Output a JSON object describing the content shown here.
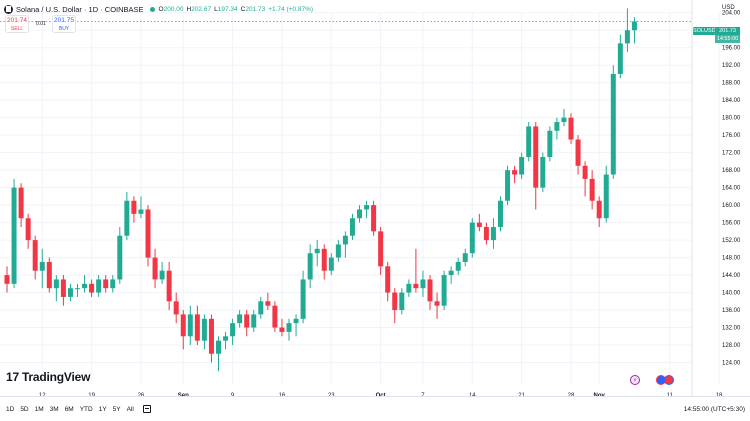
{
  "header": {
    "title": "Solana / U.S. Dollar · 1D · COINBASE",
    "ohlc": {
      "o_label": "O",
      "o": "200.00",
      "h_label": "H",
      "h": "202.67",
      "l_label": "L",
      "l": "197.34",
      "c_label": "C",
      "c": "201.73",
      "change": "+1.74 (+0.87%)"
    },
    "status_color": "#22ab94"
  },
  "trade": {
    "sell_price": "201.74",
    "sell_label": "SELL",
    "buy_price": "201.75",
    "buy_label": "BUY",
    "spread": "0.01"
  },
  "axis": {
    "currency": "USD",
    "symbol_badge": "SOLUSD",
    "last_price": "201.73",
    "countdown": "14:55:00"
  },
  "watermark": "TradingView",
  "toolbar": {
    "ranges": [
      "1D",
      "5D",
      "1M",
      "3M",
      "6M",
      "YTD",
      "1Y",
      "5Y",
      "All"
    ],
    "clock": "14:55:00 (UTC+5:30)"
  },
  "colors": {
    "up": "#22ab94",
    "down": "#f23645",
    "grid": "#f0f3fa"
  },
  "chart_data": {
    "type": "candlestick",
    "ylim": [
      120,
      206
    ],
    "yticks": [
      124,
      128,
      132,
      136,
      140,
      144,
      148,
      152,
      156,
      160,
      164,
      168,
      172,
      176,
      180,
      184,
      188,
      192,
      196,
      200,
      204
    ],
    "xticks": [
      {
        "label": "12",
        "i": 5,
        "bold": false
      },
      {
        "label": "19",
        "i": 12,
        "bold": false
      },
      {
        "label": "26",
        "i": 19,
        "bold": false
      },
      {
        "label": "Sep",
        "i": 25,
        "bold": true
      },
      {
        "label": "9",
        "i": 32,
        "bold": false
      },
      {
        "label": "16",
        "i": 39,
        "bold": false
      },
      {
        "label": "23",
        "i": 46,
        "bold": false
      },
      {
        "label": "Oct",
        "i": 53,
        "bold": true
      },
      {
        "label": "7",
        "i": 59,
        "bold": false
      },
      {
        "label": "14",
        "i": 66,
        "bold": false
      },
      {
        "label": "21",
        "i": 73,
        "bold": false
      },
      {
        "label": "28",
        "i": 80,
        "bold": false
      },
      {
        "label": "Nov",
        "i": 84,
        "bold": true
      },
      {
        "label": "11",
        "i": 94,
        "bold": false
      },
      {
        "label": "18",
        "i": 101,
        "bold": false
      }
    ],
    "candles": [
      {
        "o": 144,
        "h": 146,
        "l": 140,
        "c": 142
      },
      {
        "o": 142,
        "h": 166,
        "l": 141,
        "c": 164
      },
      {
        "o": 164,
        "h": 165,
        "l": 155,
        "c": 157
      },
      {
        "o": 157,
        "h": 158,
        "l": 150,
        "c": 152
      },
      {
        "o": 152,
        "h": 153,
        "l": 143,
        "c": 145
      },
      {
        "o": 145,
        "h": 150,
        "l": 141,
        "c": 147
      },
      {
        "o": 147,
        "h": 148,
        "l": 140,
        "c": 141
      },
      {
        "o": 141,
        "h": 144,
        "l": 138,
        "c": 143
      },
      {
        "o": 143,
        "h": 144,
        "l": 137,
        "c": 139
      },
      {
        "o": 139,
        "h": 142,
        "l": 138,
        "c": 141
      },
      {
        "o": 141,
        "h": 142,
        "l": 139,
        "c": 141
      },
      {
        "o": 141,
        "h": 144,
        "l": 140,
        "c": 142
      },
      {
        "o": 142,
        "h": 143,
        "l": 139,
        "c": 140
      },
      {
        "o": 140,
        "h": 144,
        "l": 139,
        "c": 143
      },
      {
        "o": 143,
        "h": 144,
        "l": 140,
        "c": 141
      },
      {
        "o": 141,
        "h": 144,
        "l": 140,
        "c": 143
      },
      {
        "o": 143,
        "h": 155,
        "l": 142,
        "c": 153
      },
      {
        "o": 153,
        "h": 163,
        "l": 152,
        "c": 161
      },
      {
        "o": 161,
        "h": 162,
        "l": 156,
        "c": 158
      },
      {
        "o": 158,
        "h": 162,
        "l": 157,
        "c": 159
      },
      {
        "o": 159,
        "h": 160,
        "l": 146,
        "c": 148
      },
      {
        "o": 148,
        "h": 150,
        "l": 141,
        "c": 143
      },
      {
        "o": 143,
        "h": 147,
        "l": 142,
        "c": 145
      },
      {
        "o": 145,
        "h": 147,
        "l": 136,
        "c": 138
      },
      {
        "o": 138,
        "h": 140,
        "l": 133,
        "c": 135
      },
      {
        "o": 135,
        "h": 136,
        "l": 127,
        "c": 130
      },
      {
        "o": 130,
        "h": 137,
        "l": 128,
        "c": 135
      },
      {
        "o": 135,
        "h": 137,
        "l": 128,
        "c": 129
      },
      {
        "o": 129,
        "h": 135,
        "l": 127,
        "c": 134
      },
      {
        "o": 134,
        "h": 135,
        "l": 124,
        "c": 126
      },
      {
        "o": 126,
        "h": 130,
        "l": 122,
        "c": 129
      },
      {
        "o": 129,
        "h": 131,
        "l": 127,
        "c": 130
      },
      {
        "o": 130,
        "h": 134,
        "l": 128,
        "c": 133
      },
      {
        "o": 133,
        "h": 136,
        "l": 132,
        "c": 135
      },
      {
        "o": 135,
        "h": 136,
        "l": 130,
        "c": 132
      },
      {
        "o": 132,
        "h": 136,
        "l": 131,
        "c": 135
      },
      {
        "o": 135,
        "h": 139,
        "l": 134,
        "c": 138
      },
      {
        "o": 138,
        "h": 140,
        "l": 136,
        "c": 137
      },
      {
        "o": 137,
        "h": 138,
        "l": 131,
        "c": 132
      },
      {
        "o": 132,
        "h": 134,
        "l": 130,
        "c": 131
      },
      {
        "o": 131,
        "h": 134,
        "l": 129,
        "c": 133
      },
      {
        "o": 133,
        "h": 135,
        "l": 130,
        "c": 134
      },
      {
        "o": 134,
        "h": 145,
        "l": 133,
        "c": 143
      },
      {
        "o": 143,
        "h": 151,
        "l": 141,
        "c": 149
      },
      {
        "o": 149,
        "h": 152,
        "l": 146,
        "c": 150
      },
      {
        "o": 150,
        "h": 151,
        "l": 143,
        "c": 145
      },
      {
        "o": 145,
        "h": 149,
        "l": 144,
        "c": 148
      },
      {
        "o": 148,
        "h": 152,
        "l": 147,
        "c": 151
      },
      {
        "o": 151,
        "h": 154,
        "l": 148,
        "c": 153
      },
      {
        "o": 153,
        "h": 158,
        "l": 152,
        "c": 157
      },
      {
        "o": 157,
        "h": 160,
        "l": 156,
        "c": 159
      },
      {
        "o": 159,
        "h": 161,
        "l": 157,
        "c": 160
      },
      {
        "o": 160,
        "h": 161,
        "l": 153,
        "c": 154
      },
      {
        "o": 154,
        "h": 155,
        "l": 144,
        "c": 146
      },
      {
        "o": 146,
        "h": 147,
        "l": 138,
        "c": 140
      },
      {
        "o": 140,
        "h": 141,
        "l": 133,
        "c": 136
      },
      {
        "o": 136,
        "h": 141,
        "l": 135,
        "c": 140
      },
      {
        "o": 140,
        "h": 143,
        "l": 139,
        "c": 142
      },
      {
        "o": 142,
        "h": 150,
        "l": 140,
        "c": 141
      },
      {
        "o": 141,
        "h": 145,
        "l": 139,
        "c": 143
      },
      {
        "o": 143,
        "h": 144,
        "l": 136,
        "c": 138
      },
      {
        "o": 138,
        "h": 140,
        "l": 134,
        "c": 137
      },
      {
        "o": 137,
        "h": 145,
        "l": 136,
        "c": 144
      },
      {
        "o": 144,
        "h": 146,
        "l": 142,
        "c": 145
      },
      {
        "o": 145,
        "h": 148,
        "l": 144,
        "c": 147
      },
      {
        "o": 147,
        "h": 150,
        "l": 146,
        "c": 149
      },
      {
        "o": 149,
        "h": 157,
        "l": 148,
        "c": 156
      },
      {
        "o": 156,
        "h": 158,
        "l": 154,
        "c": 155
      },
      {
        "o": 155,
        "h": 156,
        "l": 151,
        "c": 152
      },
      {
        "o": 152,
        "h": 157,
        "l": 150,
        "c": 155
      },
      {
        "o": 155,
        "h": 162,
        "l": 154,
        "c": 161
      },
      {
        "o": 161,
        "h": 169,
        "l": 160,
        "c": 168
      },
      {
        "o": 168,
        "h": 169,
        "l": 165,
        "c": 167
      },
      {
        "o": 167,
        "h": 172,
        "l": 166,
        "c": 171
      },
      {
        "o": 171,
        "h": 179,
        "l": 170,
        "c": 178
      },
      {
        "o": 178,
        "h": 179,
        "l": 159,
        "c": 164
      },
      {
        "o": 164,
        "h": 172,
        "l": 163,
        "c": 171
      },
      {
        "o": 171,
        "h": 178,
        "l": 170,
        "c": 177
      },
      {
        "o": 177,
        "h": 180,
        "l": 175,
        "c": 179
      },
      {
        "o": 179,
        "h": 182,
        "l": 178,
        "c": 180
      },
      {
        "o": 180,
        "h": 181,
        "l": 174,
        "c": 175
      },
      {
        "o": 175,
        "h": 176,
        "l": 167,
        "c": 169
      },
      {
        "o": 169,
        "h": 170,
        "l": 162,
        "c": 166
      },
      {
        "o": 166,
        "h": 168,
        "l": 159,
        "c": 161
      },
      {
        "o": 161,
        "h": 162,
        "l": 155,
        "c": 157
      },
      {
        "o": 157,
        "h": 169,
        "l": 156,
        "c": 167
      },
      {
        "o": 167,
        "h": 192,
        "l": 166,
        "c": 190
      },
      {
        "o": 190,
        "h": 199,
        "l": 189,
        "c": 197
      },
      {
        "o": 197,
        "h": 205,
        "l": 195,
        "c": 200
      },
      {
        "o": 200,
        "h": 203,
        "l": 197,
        "c": 202
      }
    ]
  }
}
